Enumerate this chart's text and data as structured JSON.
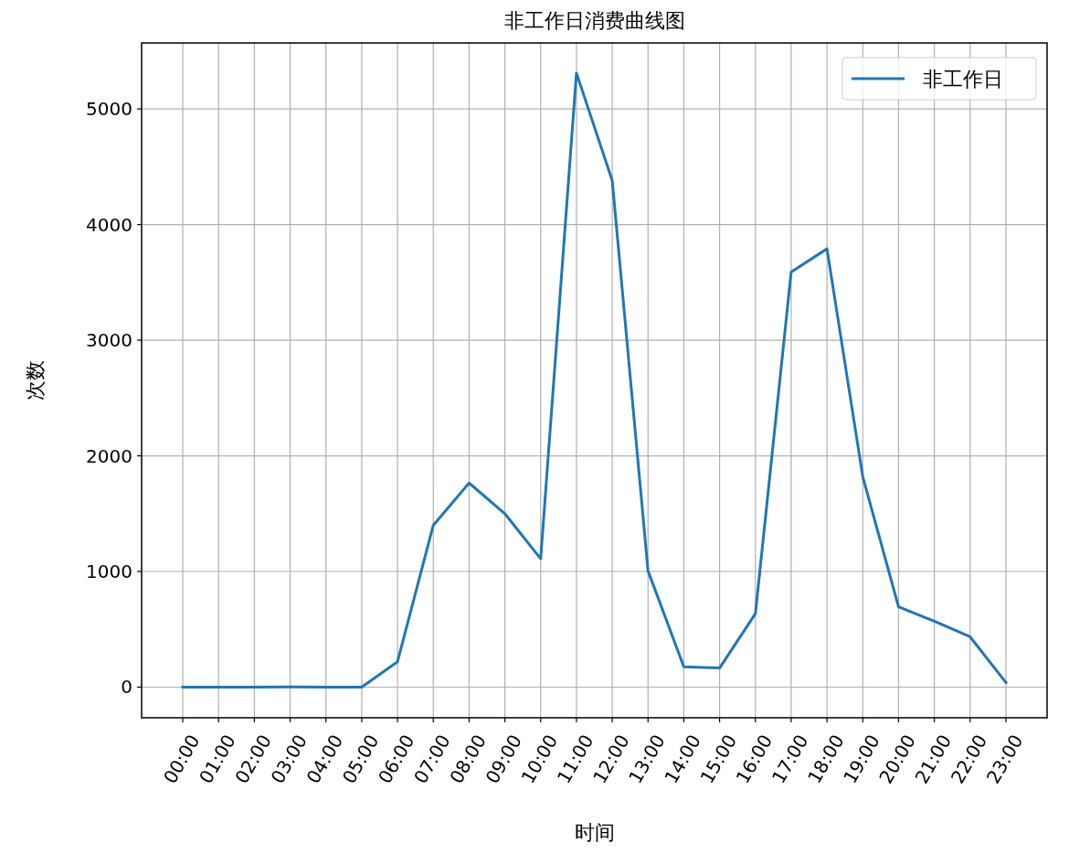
{
  "chart_data": {
    "type": "line",
    "title": "非工作日消费曲线图",
    "xlabel": "时间",
    "ylabel": "次数",
    "categories": [
      "00:00",
      "01:00",
      "02:00",
      "03:00",
      "04:00",
      "05:00",
      "06:00",
      "07:00",
      "08:00",
      "09:00",
      "10:00",
      "11:00",
      "12:00",
      "13:00",
      "14:00",
      "15:00",
      "16:00",
      "17:00",
      "18:00",
      "19:00",
      "20:00",
      "21:00",
      "22:00",
      "23:00"
    ],
    "series": [
      {
        "name": "非工作日",
        "color": "#1f77b4",
        "values": [
          0,
          0,
          0,
          2,
          0,
          0,
          220,
          1400,
          1765,
          1500,
          1110,
          5310,
          4380,
          1005,
          175,
          165,
          635,
          3590,
          3790,
          1820,
          695,
          570,
          435,
          40
        ]
      }
    ],
    "ylim": [
      -265,
      5570
    ],
    "yticks": [
      0,
      1000,
      2000,
      3000,
      4000,
      5000
    ],
    "grid": true,
    "legend": "top right"
  }
}
